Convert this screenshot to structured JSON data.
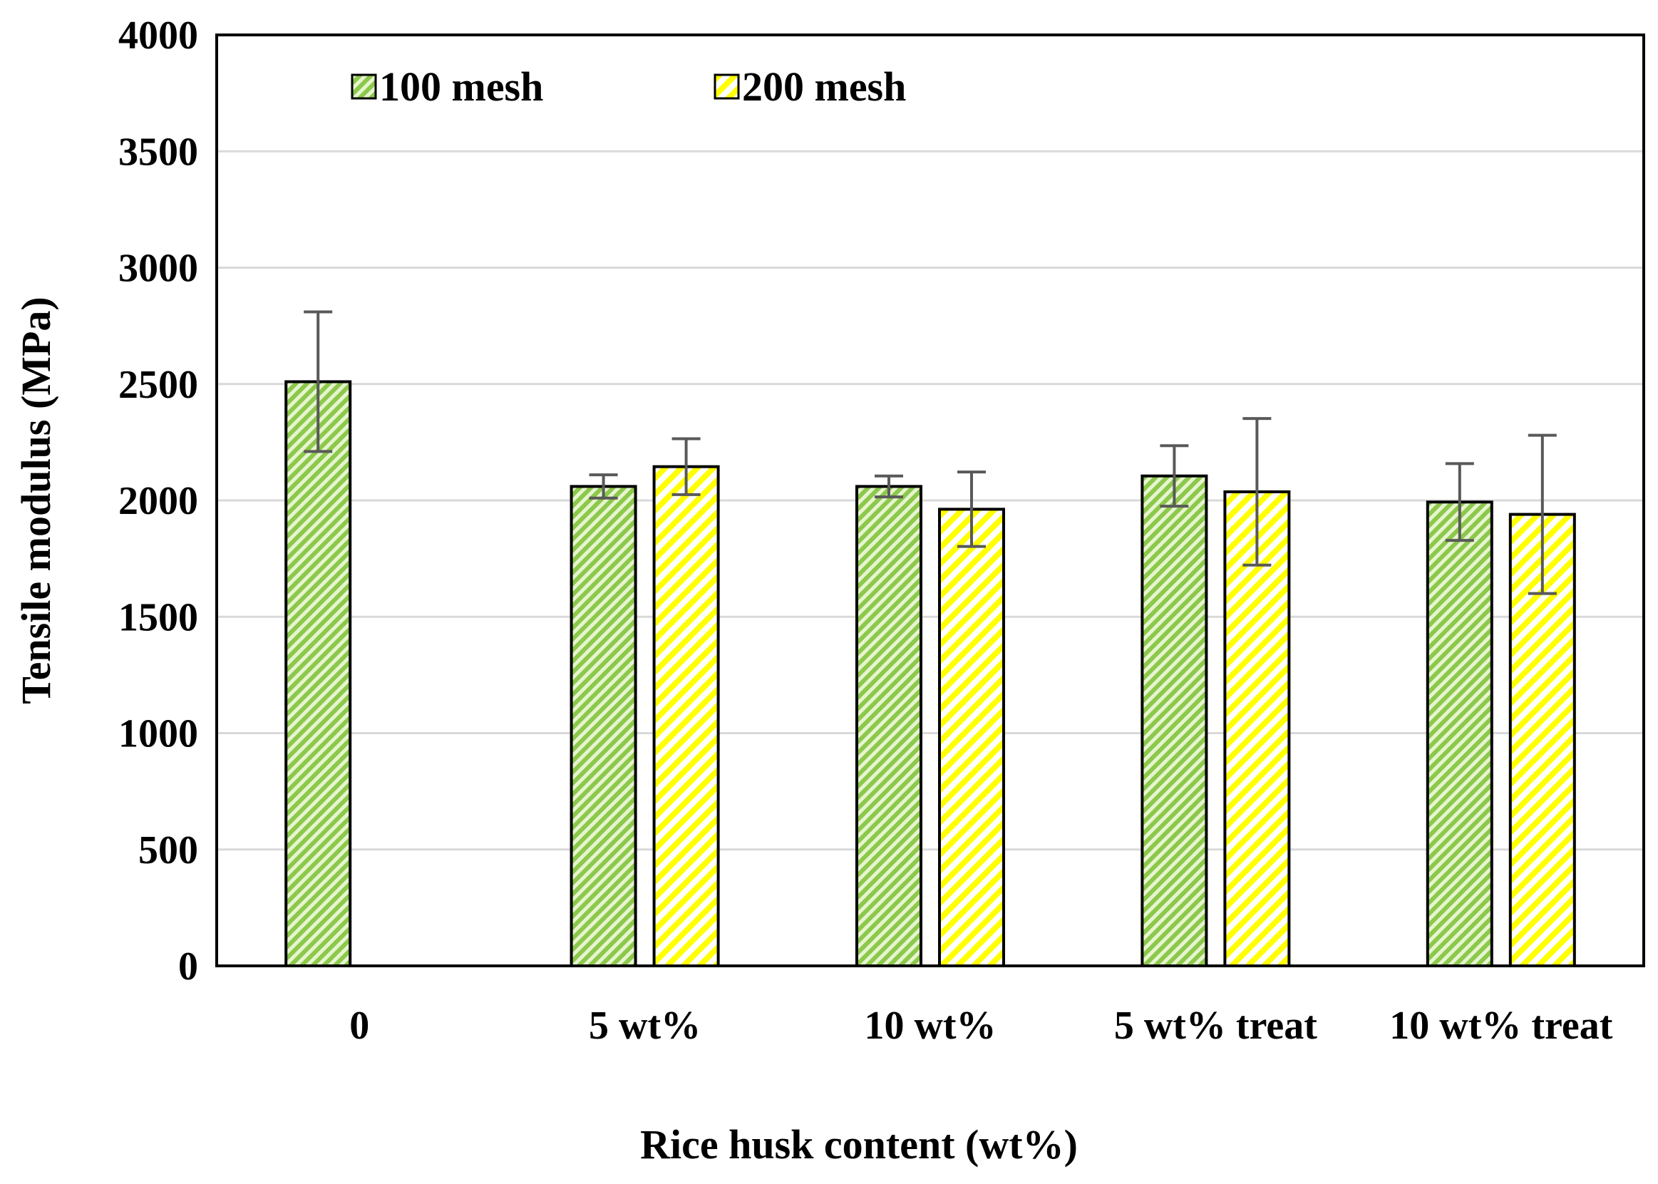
{
  "chart_data": {
    "type": "bar",
    "title": "",
    "xlabel": "Rice husk content (wt%)",
    "ylabel": "Tensile modulus (MPa)",
    "ylim": [
      0,
      4000
    ],
    "yticks": [
      0,
      500,
      1000,
      1500,
      2000,
      2500,
      3000,
      3500,
      4000
    ],
    "grid": true,
    "legend_position": "top-left",
    "categories": [
      "0",
      "5 wt%",
      "10 wt%",
      "5 wt% treat",
      "10 wt% treat"
    ],
    "series": [
      {
        "name": "100 mesh",
        "color": "#92d050",
        "pattern": "diagonal-hatch",
        "values": [
          2510,
          2060,
          2060,
          2105,
          1993
        ],
        "errors": [
          300,
          50,
          45,
          130,
          165
        ]
      },
      {
        "name": "200 mesh",
        "color": "#ffff00",
        "pattern": "diagonal-hatch",
        "values": [
          null,
          2145,
          1962,
          2037,
          1940
        ],
        "errors": [
          null,
          120,
          160,
          315,
          340
        ]
      }
    ]
  }
}
